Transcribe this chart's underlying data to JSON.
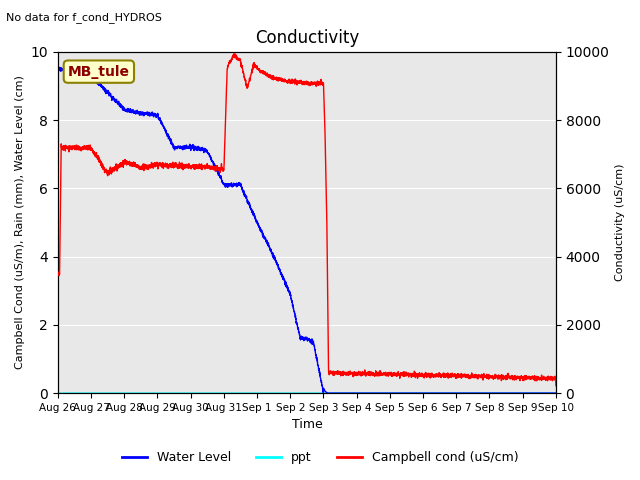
{
  "title": "Conductivity",
  "top_left_text": "No data for f_cond_HYDROS",
  "ylabel_left": "Campbell Cond (uS/m), Rain (mm), Water Level (cm)",
  "ylabel_right": "Conductivity (uS/cm)",
  "xlabel": "Time",
  "ylim_left": [
    0,
    10.0
  ],
  "ylim_right": [
    0,
    10000
  ],
  "xtick_labels": [
    "Aug 26",
    "Aug 27",
    "Aug 28",
    "Aug 29",
    "Aug 30",
    "Aug 31",
    "Sep 1",
    "Sep 2",
    "Sep 3",
    "Sep 4",
    "Sep 5",
    "Sep 6",
    "Sep 7",
    "Sep 8",
    "Sep 9",
    "Sep 10"
  ],
  "bg_color": "#e8e8e8",
  "annotation_box": {
    "text": "MB_tule",
    "facecolor": "#ffffcc",
    "edgecolor": "#8B8000",
    "fontsize": 10
  },
  "grid_color": "white",
  "title_fontsize": 12,
  "ylabel_fontsize": 8,
  "xlabel_fontsize": 9,
  "tick_fontsize": 7.5
}
